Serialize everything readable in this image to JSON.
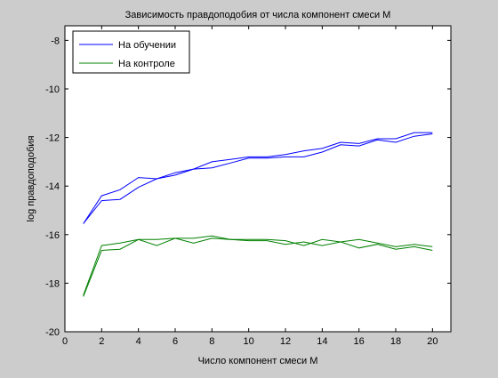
{
  "chart_data": {
    "type": "line",
    "title": "Зависимость правдоподобия от числа компонент смеси M",
    "xlabel": "Число компонент смеси M",
    "ylabel": "log правдоподобия",
    "xlim": [
      0,
      21
    ],
    "ylim": [
      -20,
      -7.4
    ],
    "xticks": [
      0,
      2,
      4,
      6,
      8,
      10,
      12,
      14,
      16,
      18,
      20
    ],
    "yticks": [
      -20,
      -18,
      -16,
      -14,
      -12,
      -10,
      -8
    ],
    "grid": false,
    "legend_position": "top-left",
    "series": [
      {
        "name": "На обучении",
        "color": "#0000ff",
        "x": [
          1,
          2,
          3,
          4,
          5,
          6,
          7,
          8,
          9,
          10,
          11,
          12,
          13,
          14,
          15,
          16,
          17,
          18,
          19,
          20
        ],
        "values": [
          -15.55,
          -14.4,
          -14.15,
          -13.65,
          -13.7,
          -13.45,
          -13.3,
          -13.0,
          -12.9,
          -12.8,
          -12.8,
          -12.7,
          -12.55,
          -12.45,
          -12.2,
          -12.25,
          -12.05,
          -12.05,
          -11.8,
          -11.8
        ]
      },
      {
        "name": "На обучении",
        "color": "#0000ff",
        "x": [
          1,
          2,
          3,
          4,
          5,
          6,
          7,
          8,
          9,
          10,
          11,
          12,
          13,
          14,
          15,
          16,
          17,
          18,
          19,
          20
        ],
        "values": [
          -15.55,
          -14.6,
          -14.55,
          -14.05,
          -13.7,
          -13.55,
          -13.3,
          -13.25,
          -13.05,
          -12.85,
          -12.85,
          -12.8,
          -12.8,
          -12.6,
          -12.3,
          -12.35,
          -12.1,
          -12.2,
          -11.95,
          -11.85
        ]
      },
      {
        "name": "На контроле",
        "color": "#008000",
        "x": [
          1,
          2,
          3,
          4,
          5,
          6,
          7,
          8,
          9,
          10,
          11,
          12,
          13,
          14,
          15,
          16,
          17,
          18,
          19,
          20
        ],
        "values": [
          -18.5,
          -16.45,
          -16.35,
          -16.2,
          -16.2,
          -16.15,
          -16.15,
          -16.05,
          -16.2,
          -16.2,
          -16.2,
          -16.25,
          -16.45,
          -16.2,
          -16.3,
          -16.2,
          -16.35,
          -16.5,
          -16.4,
          -16.5
        ]
      },
      {
        "name": "На контроле",
        "color": "#008000",
        "x": [
          1,
          2,
          3,
          4,
          5,
          6,
          7,
          8,
          9,
          10,
          11,
          12,
          13,
          14,
          15,
          16,
          17,
          18,
          19,
          20
        ],
        "values": [
          -18.55,
          -16.65,
          -16.6,
          -16.2,
          -16.45,
          -16.15,
          -16.35,
          -16.15,
          -16.2,
          -16.25,
          -16.25,
          -16.4,
          -16.3,
          -16.45,
          -16.3,
          -16.55,
          -16.4,
          -16.6,
          -16.5,
          -16.65
        ]
      }
    ]
  }
}
